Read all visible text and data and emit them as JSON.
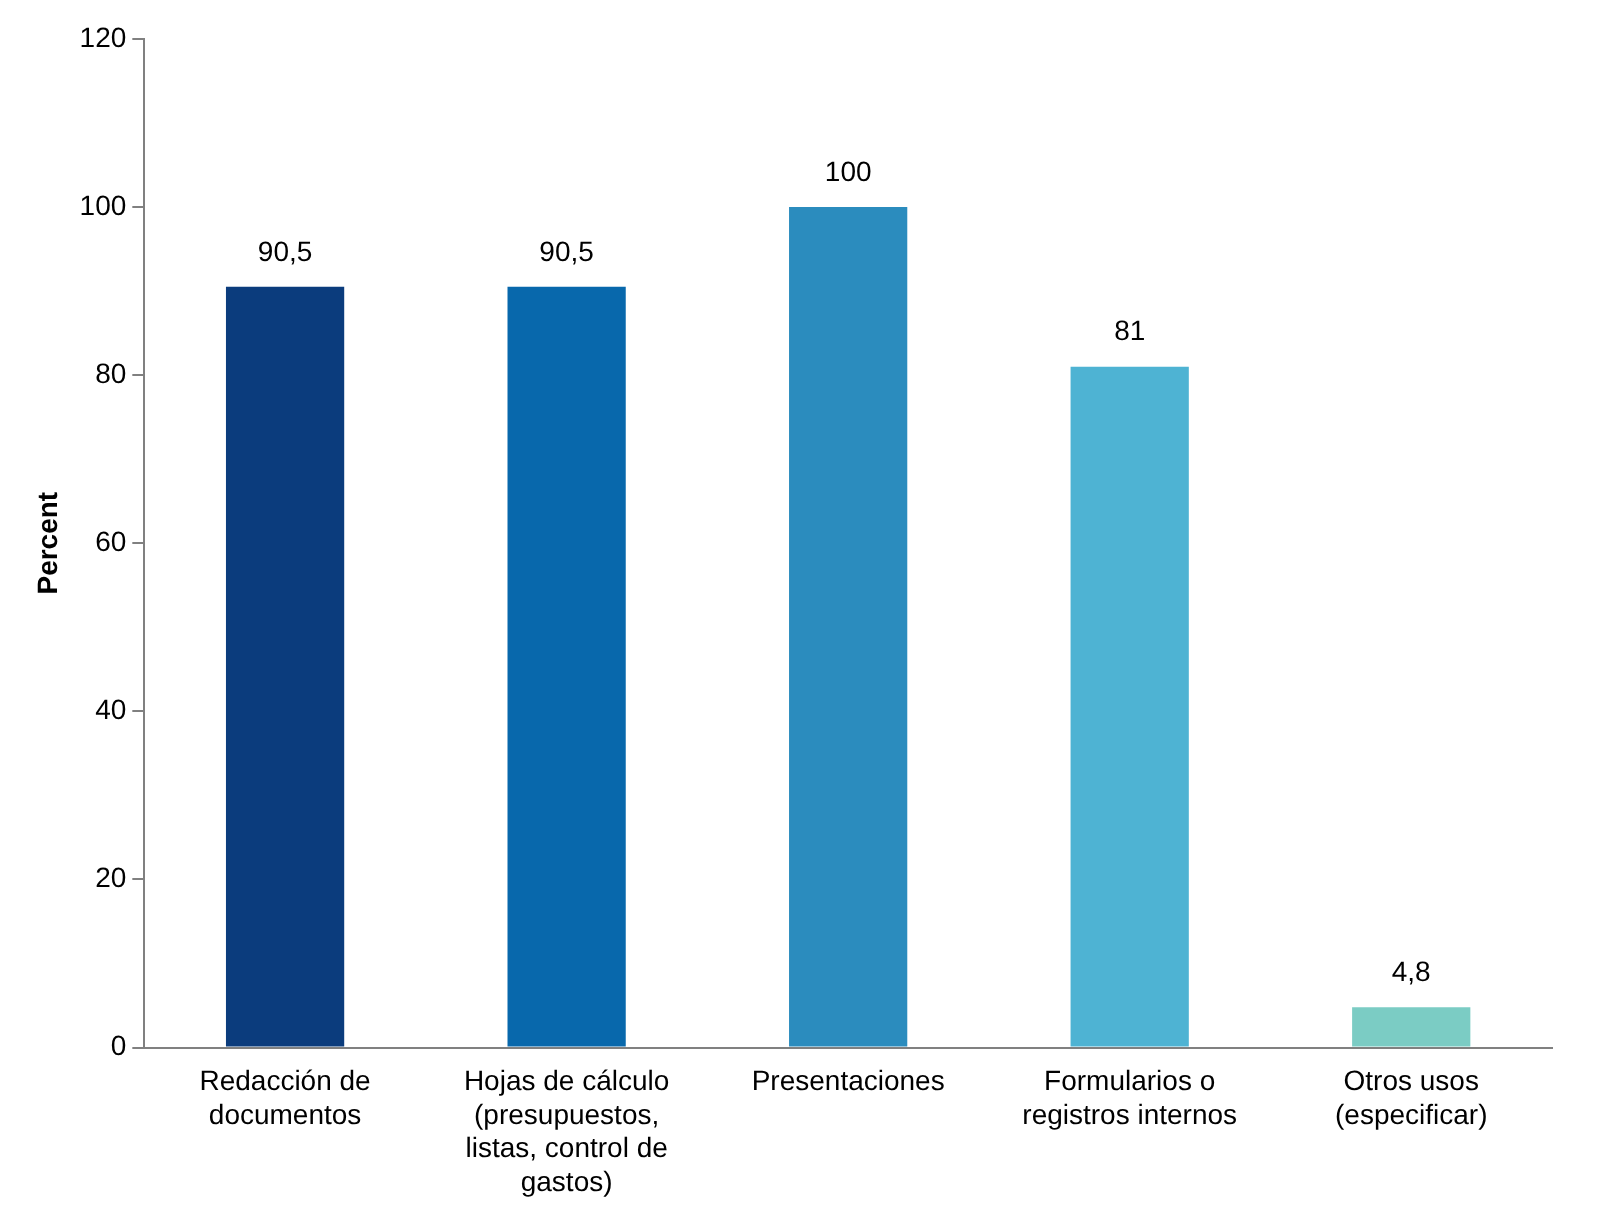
{
  "chart_data": {
    "type": "bar",
    "ylabel": "Percent",
    "categories": [
      "Redacción de documentos",
      "Hojas de cálculo (presupuestos, listas, control de gastos)",
      "Presentaciones",
      "Formularios o registros internos",
      "Otros usos (especificar)"
    ],
    "values": [
      90.5,
      90.5,
      100,
      81,
      4.8
    ],
    "value_labels": [
      "90,5",
      "90,5",
      "100",
      "81",
      "4,8"
    ],
    "colors": [
      "#0b3c7d",
      "#0868ac",
      "#2b8cbe",
      "#4eb3d3",
      "#7bccc4"
    ],
    "ylim": [
      0,
      120
    ],
    "yticks": [
      0,
      20,
      40,
      60,
      80,
      100,
      120
    ],
    "grid": false,
    "legend": false
  }
}
